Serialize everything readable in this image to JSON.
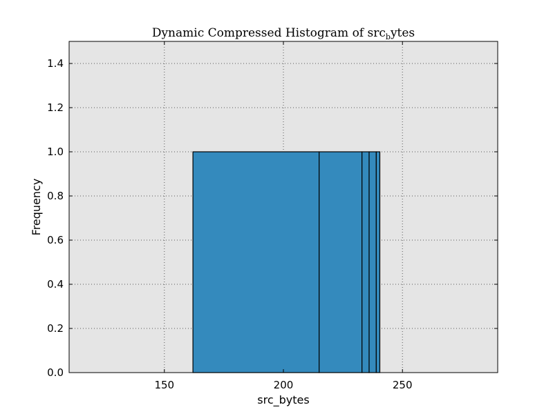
{
  "chart_data": {
    "type": "bar",
    "title": "Dynamic Compressed Histogram of src",
    "title_subscript": "b",
    "title_suffix": "ytes",
    "xlabel": "src_bytes",
    "ylabel": "Frequency",
    "xlim": [
      110,
      290
    ],
    "ylim": [
      0,
      1.5
    ],
    "xticks": [
      150,
      200,
      250
    ],
    "yticks": [
      0.0,
      0.2,
      0.4,
      0.6,
      0.8,
      1.0,
      1.2,
      1.4
    ],
    "ytick_labels": [
      "0.0",
      "0.2",
      "0.4",
      "0.6",
      "0.8",
      "1.0",
      "1.2",
      "1.4"
    ],
    "grid": true,
    "bins": [
      {
        "x_start": 162,
        "x_end": 215,
        "value": 1.0
      },
      {
        "x_start": 215,
        "x_end": 233,
        "value": 1.0
      },
      {
        "x_start": 233,
        "x_end": 236,
        "value": 1.0
      },
      {
        "x_start": 236,
        "x_end": 239,
        "value": 1.0
      },
      {
        "x_start": 239,
        "x_end": 240.5,
        "value": 1.0
      }
    ],
    "colors": {
      "bar_fill": "#348abd",
      "bar_edge": "#000000",
      "plot_bg": "#e5e5e5",
      "grid": "#555555"
    }
  }
}
